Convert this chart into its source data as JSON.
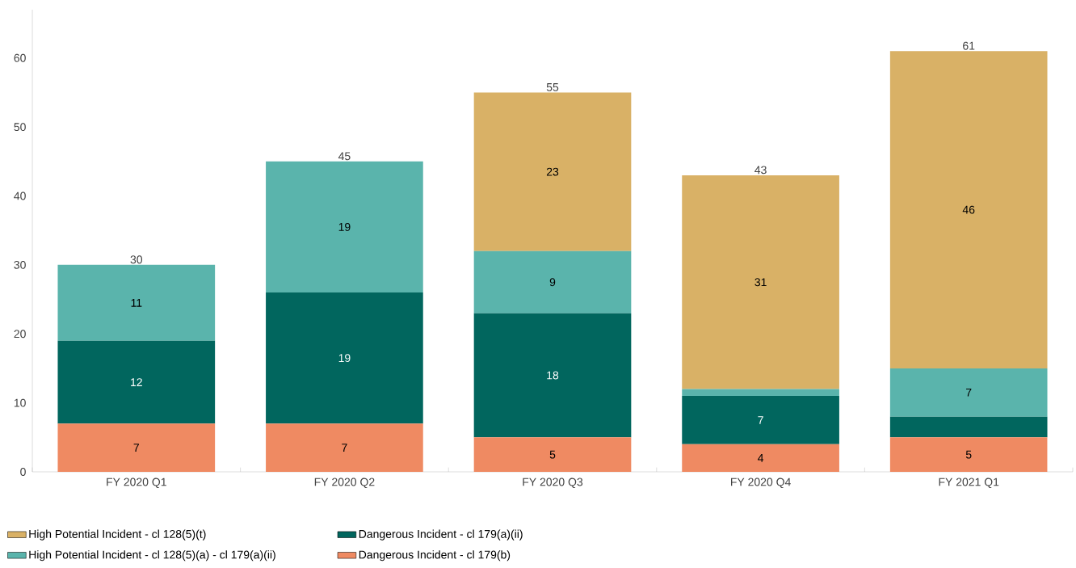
{
  "chart_data": {
    "type": "bar",
    "stacked": true,
    "categories": [
      "FY 2020 Q1",
      "FY 2020 Q2",
      "FY 2020 Q3",
      "FY 2020 Q4",
      "FY 2021 Q1"
    ],
    "series": [
      {
        "name": "Dangerous Incident - cl 179(b)",
        "color": "#ef8a62",
        "values": [
          7,
          7,
          5,
          4,
          5
        ],
        "value_labels": [
          "7",
          "7",
          "5",
          "4",
          "5"
        ]
      },
      {
        "name": "Dangerous Incident - cl 179(a)(ii)",
        "color": "#01665e",
        "values": [
          12,
          19,
          18,
          7,
          3
        ],
        "value_labels": [
          "12",
          "19",
          "18",
          "7",
          null
        ]
      },
      {
        "name": "High Potential Incident - cl 128(5)(a) - cl 179(a)(ii)",
        "color": "#5ab4ac",
        "values": [
          11,
          19,
          9,
          1,
          7
        ],
        "value_labels": [
          "11",
          "19",
          "9",
          null,
          "7"
        ]
      },
      {
        "name": "High Potential Incident - cl 128(5)(t)",
        "color": "#d9b166",
        "values": [
          0,
          0,
          23,
          31,
          46
        ],
        "value_labels": [
          null,
          null,
          "23",
          "31",
          "46"
        ]
      }
    ],
    "totals": [
      "30",
      "45",
      "55",
      "43",
      "61"
    ],
    "ylim": [
      0,
      67
    ],
    "yticks": [
      0,
      10,
      20,
      30,
      40,
      50,
      60
    ],
    "legend": "bottom left"
  }
}
